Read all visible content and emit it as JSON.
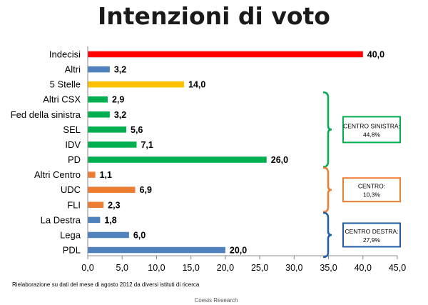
{
  "chart_data": {
    "type": "bar",
    "orientation": "horizontal",
    "title": "Intenzioni di voto",
    "categories": [
      "Indecisi",
      "Altri",
      "5 Stelle",
      "Altri CSX",
      "Fed della sinistra",
      "SEL",
      "IDV",
      "PD",
      "Altri Centro",
      "UDC",
      "FLI",
      "La Destra",
      "Lega",
      "PDL"
    ],
    "values": [
      40.0,
      3.2,
      14.0,
      2.9,
      3.2,
      5.6,
      7.1,
      26.0,
      1.1,
      6.9,
      2.3,
      1.8,
      6.0,
      20.0
    ],
    "value_labels": [
      "40,0",
      "3,2",
      "14,0",
      "2,9",
      "3,2",
      "5,6",
      "7,1",
      "26,0",
      "1,1",
      "6,9",
      "2,3",
      "1,8",
      "6,0",
      "20,0"
    ],
    "bar_colors": [
      "#ff0000",
      "#4f81bd",
      "#ffc000",
      "#00b050",
      "#00b050",
      "#00b050",
      "#00b050",
      "#00b050",
      "#ed7d31",
      "#ed7d31",
      "#ed7d31",
      "#4f81bd",
      "#4f81bd",
      "#4f81bd"
    ],
    "xlim": [
      0,
      45
    ],
    "xticks": [
      0,
      5,
      10,
      15,
      20,
      25,
      30,
      35,
      40,
      45
    ],
    "xtick_labels": [
      "0,0",
      "5,0",
      "10,0",
      "15,0",
      "20,0",
      "25,0",
      "30,0",
      "35,0",
      "40,0",
      "45,0"
    ],
    "grid": false,
    "groups": [
      {
        "line1": "CENTRO SINISTRA:",
        "line2": "44,8%",
        "from": "Altri CSX",
        "to": "PD",
        "color": "#00b050"
      },
      {
        "line1": "CENTRO:",
        "line2": "10,3%",
        "from": "Altri Centro",
        "to": "FLI",
        "color": "#ed7d31"
      },
      {
        "line1": "CENTRO DESTRA:",
        "line2": "27,9%",
        "from": "La Destra",
        "to": "PDL",
        "color": "#1f5fa8"
      }
    ],
    "note": "Rielaborazione su dati del mese di agosto 2012 da diversi istituti di ricerca",
    "source": "Coesis Research"
  }
}
